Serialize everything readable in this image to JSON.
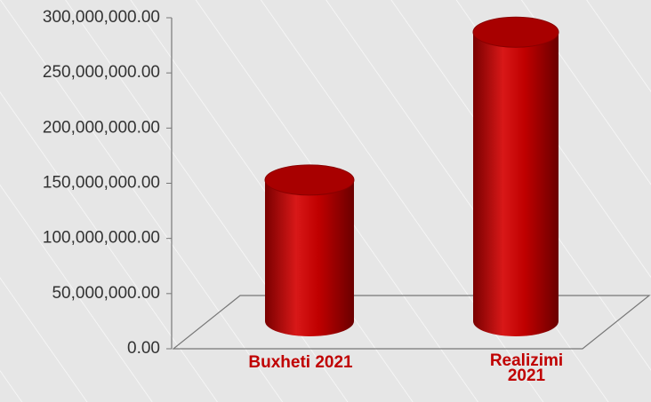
{
  "chart_data": {
    "type": "bar3d",
    "categories": [
      "Buxheti 2021",
      "Realizimi 2021"
    ],
    "values": [
      128000000,
      262000000
    ],
    "color": "#c00000",
    "ylim": [
      0,
      300000000
    ],
    "yticks": [
      {
        "value": 0,
        "label": "0.00"
      },
      {
        "value": 50000000,
        "label": "50,000,000.00"
      },
      {
        "value": 100000000,
        "label": "100,000,000.00"
      },
      {
        "value": 150000000,
        "label": "150,000,000.00"
      },
      {
        "value": 200000000,
        "label": "200,000,000.00"
      },
      {
        "value": 250000000,
        "label": "250,000,000.00"
      },
      {
        "value": 300000000,
        "label": "300,000,000.00"
      }
    ]
  }
}
